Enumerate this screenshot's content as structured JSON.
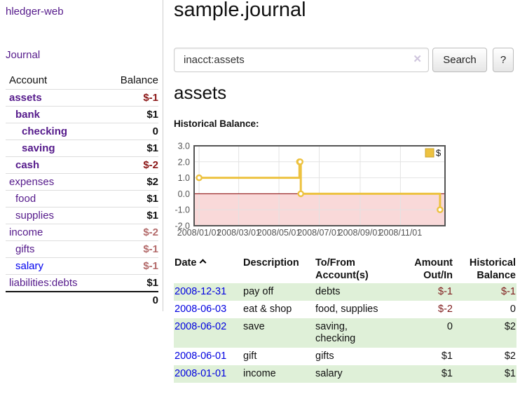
{
  "app": {
    "brand": "hledger-web",
    "nav_journal": "Journal"
  },
  "sidebar": {
    "header": {
      "account": "Account",
      "balance": "Balance"
    },
    "accounts": [
      {
        "name": "assets",
        "depth": 1,
        "bold": true,
        "balance": "$-1",
        "neg": "strong"
      },
      {
        "name": "bank",
        "depth": 2,
        "bold": true,
        "balance": "$1"
      },
      {
        "name": "checking",
        "depth": 3,
        "bold": true,
        "balance": "0"
      },
      {
        "name": "saving",
        "depth": 3,
        "bold": true,
        "balance": "$1"
      },
      {
        "name": "cash",
        "depth": 2,
        "bold": true,
        "balance": "$-2",
        "neg": "strong"
      },
      {
        "name": "expenses",
        "depth": 1,
        "bold": false,
        "balance": "$2"
      },
      {
        "name": "food",
        "depth": 2,
        "bold": false,
        "balance": "$1"
      },
      {
        "name": "supplies",
        "depth": 2,
        "bold": false,
        "balance": "$1"
      },
      {
        "name": "income",
        "depth": 1,
        "bold": false,
        "balance": "$-2",
        "neg": "muted"
      },
      {
        "name": "gifts",
        "depth": 2,
        "bold": false,
        "balance": "$-1",
        "neg": "muted"
      },
      {
        "name": "salary",
        "depth": 2,
        "bold": false,
        "balance": "$-1",
        "neg": "muted",
        "link": "unvisited"
      },
      {
        "name": "liabilities:debts",
        "depth": 1,
        "bold": false,
        "balance": "$1"
      }
    ],
    "total": "0"
  },
  "header": {
    "title": "sample.journal"
  },
  "search": {
    "value": "inacct:assets",
    "clear_icon": "✕",
    "button": "Search",
    "help": "?"
  },
  "register": {
    "heading": "assets",
    "chart_label": "Historical Balance:"
  },
  "chart_data": {
    "type": "line",
    "step": true,
    "title": "Historical Balance",
    "series": [
      {
        "name": "$",
        "color": "#edc240",
        "points": [
          [
            "2008-01-01",
            1
          ],
          [
            "2008-06-01",
            2
          ],
          [
            "2008-06-02",
            2
          ],
          [
            "2008-06-03",
            0
          ],
          [
            "2008-12-31",
            -1
          ]
        ]
      }
    ],
    "ylim": [
      -2.0,
      3.0
    ],
    "yticks": [
      "3.0",
      "2.0",
      "1.0",
      "0.0",
      "-1.0",
      "-2.0"
    ],
    "xticks": [
      "2008/01/01",
      "2008/03/01",
      "2008/05/01",
      "2008/07/01",
      "2008/09/01",
      "2008/11/01"
    ],
    "legend_position": "top-right",
    "grid": true,
    "negative_region_color": "#f9d9d9",
    "zero_line_color": "#8b0000",
    "border_color": "#545454"
  },
  "table": {
    "headers": {
      "date": "Date",
      "description": "Description",
      "accounts": "To/From Account(s)",
      "amount": "Amount Out/In",
      "balance": "Historical Balance"
    },
    "rows": [
      {
        "date": "2008-12-31",
        "description": "pay off",
        "accounts": "debts",
        "amount": "$-1",
        "amount_negative": true,
        "balance": "$-1",
        "balance_negative": true
      },
      {
        "date": "2008-06-03",
        "description": "eat & shop",
        "accounts": "food, supplies",
        "amount": "$-2",
        "amount_negative": true,
        "balance": "0",
        "balance_negative": false
      },
      {
        "date": "2008-06-02",
        "description": "save",
        "accounts": "saving, checking",
        "amount": "0",
        "amount_negative": false,
        "balance": "$2",
        "balance_negative": false
      },
      {
        "date": "2008-06-01",
        "description": "gift",
        "accounts": "gifts",
        "amount": "$1",
        "amount_negative": false,
        "balance": "$2",
        "balance_negative": false
      },
      {
        "date": "2008-01-01",
        "description": "income",
        "accounts": "salary",
        "amount": "$1",
        "amount_negative": false,
        "balance": "$1",
        "balance_negative": false
      }
    ]
  },
  "colors": {
    "link_purple": "#551a8b",
    "link_blue": "#0000ee",
    "negative_strong": "#8b1717",
    "negative_muted": "#b36a6a",
    "table_negative": "#7f1c1c",
    "row_green": "#dff0d8",
    "chart_gold": "#edc240",
    "chart_pink": "#f9d9d9",
    "zero_line": "#8b0000"
  }
}
